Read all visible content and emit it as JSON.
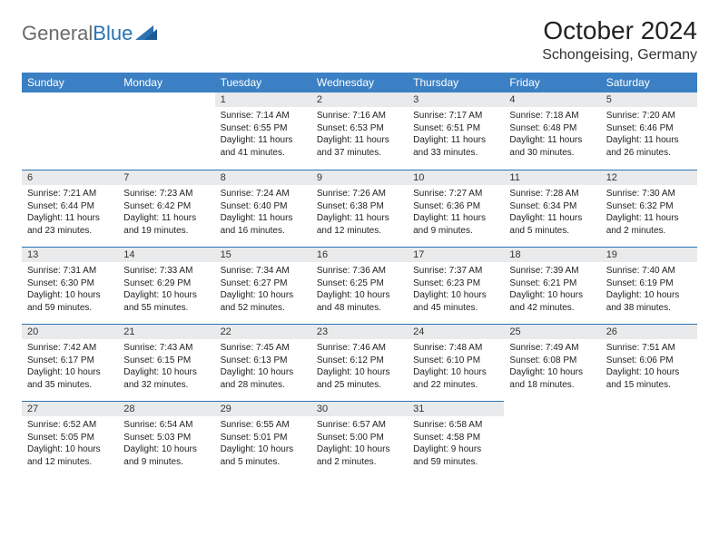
{
  "logo": {
    "general": "General",
    "blue": "Blue"
  },
  "title": "October 2024",
  "location": "Schongeising, Germany",
  "colors": {
    "header_bg": "#3b80c4",
    "header_text": "#ffffff",
    "daynum_bg": "#e9eaeb",
    "rule": "#2a72b5",
    "body_text": "#222222",
    "logo_gray": "#6a6a6a",
    "logo_blue": "#2a72b5",
    "page_bg": "#ffffff"
  },
  "weekdays": [
    "Sunday",
    "Monday",
    "Tuesday",
    "Wednesday",
    "Thursday",
    "Friday",
    "Saturday"
  ],
  "weeks": [
    [
      {
        "n": "",
        "sun": "",
        "set": "",
        "day": "",
        "empty": true
      },
      {
        "n": "",
        "sun": "",
        "set": "",
        "day": "",
        "empty": true
      },
      {
        "n": "1",
        "sun": "Sunrise: 7:14 AM",
        "set": "Sunset: 6:55 PM",
        "day": "Daylight: 11 hours and 41 minutes."
      },
      {
        "n": "2",
        "sun": "Sunrise: 7:16 AM",
        "set": "Sunset: 6:53 PM",
        "day": "Daylight: 11 hours and 37 minutes."
      },
      {
        "n": "3",
        "sun": "Sunrise: 7:17 AM",
        "set": "Sunset: 6:51 PM",
        "day": "Daylight: 11 hours and 33 minutes."
      },
      {
        "n": "4",
        "sun": "Sunrise: 7:18 AM",
        "set": "Sunset: 6:48 PM",
        "day": "Daylight: 11 hours and 30 minutes."
      },
      {
        "n": "5",
        "sun": "Sunrise: 7:20 AM",
        "set": "Sunset: 6:46 PM",
        "day": "Daylight: 11 hours and 26 minutes."
      }
    ],
    [
      {
        "n": "6",
        "sun": "Sunrise: 7:21 AM",
        "set": "Sunset: 6:44 PM",
        "day": "Daylight: 11 hours and 23 minutes."
      },
      {
        "n": "7",
        "sun": "Sunrise: 7:23 AM",
        "set": "Sunset: 6:42 PM",
        "day": "Daylight: 11 hours and 19 minutes."
      },
      {
        "n": "8",
        "sun": "Sunrise: 7:24 AM",
        "set": "Sunset: 6:40 PM",
        "day": "Daylight: 11 hours and 16 minutes."
      },
      {
        "n": "9",
        "sun": "Sunrise: 7:26 AM",
        "set": "Sunset: 6:38 PM",
        "day": "Daylight: 11 hours and 12 minutes."
      },
      {
        "n": "10",
        "sun": "Sunrise: 7:27 AM",
        "set": "Sunset: 6:36 PM",
        "day": "Daylight: 11 hours and 9 minutes."
      },
      {
        "n": "11",
        "sun": "Sunrise: 7:28 AM",
        "set": "Sunset: 6:34 PM",
        "day": "Daylight: 11 hours and 5 minutes."
      },
      {
        "n": "12",
        "sun": "Sunrise: 7:30 AM",
        "set": "Sunset: 6:32 PM",
        "day": "Daylight: 11 hours and 2 minutes."
      }
    ],
    [
      {
        "n": "13",
        "sun": "Sunrise: 7:31 AM",
        "set": "Sunset: 6:30 PM",
        "day": "Daylight: 10 hours and 59 minutes."
      },
      {
        "n": "14",
        "sun": "Sunrise: 7:33 AM",
        "set": "Sunset: 6:29 PM",
        "day": "Daylight: 10 hours and 55 minutes."
      },
      {
        "n": "15",
        "sun": "Sunrise: 7:34 AM",
        "set": "Sunset: 6:27 PM",
        "day": "Daylight: 10 hours and 52 minutes."
      },
      {
        "n": "16",
        "sun": "Sunrise: 7:36 AM",
        "set": "Sunset: 6:25 PM",
        "day": "Daylight: 10 hours and 48 minutes."
      },
      {
        "n": "17",
        "sun": "Sunrise: 7:37 AM",
        "set": "Sunset: 6:23 PM",
        "day": "Daylight: 10 hours and 45 minutes."
      },
      {
        "n": "18",
        "sun": "Sunrise: 7:39 AM",
        "set": "Sunset: 6:21 PM",
        "day": "Daylight: 10 hours and 42 minutes."
      },
      {
        "n": "19",
        "sun": "Sunrise: 7:40 AM",
        "set": "Sunset: 6:19 PM",
        "day": "Daylight: 10 hours and 38 minutes."
      }
    ],
    [
      {
        "n": "20",
        "sun": "Sunrise: 7:42 AM",
        "set": "Sunset: 6:17 PM",
        "day": "Daylight: 10 hours and 35 minutes."
      },
      {
        "n": "21",
        "sun": "Sunrise: 7:43 AM",
        "set": "Sunset: 6:15 PM",
        "day": "Daylight: 10 hours and 32 minutes."
      },
      {
        "n": "22",
        "sun": "Sunrise: 7:45 AM",
        "set": "Sunset: 6:13 PM",
        "day": "Daylight: 10 hours and 28 minutes."
      },
      {
        "n": "23",
        "sun": "Sunrise: 7:46 AM",
        "set": "Sunset: 6:12 PM",
        "day": "Daylight: 10 hours and 25 minutes."
      },
      {
        "n": "24",
        "sun": "Sunrise: 7:48 AM",
        "set": "Sunset: 6:10 PM",
        "day": "Daylight: 10 hours and 22 minutes."
      },
      {
        "n": "25",
        "sun": "Sunrise: 7:49 AM",
        "set": "Sunset: 6:08 PM",
        "day": "Daylight: 10 hours and 18 minutes."
      },
      {
        "n": "26",
        "sun": "Sunrise: 7:51 AM",
        "set": "Sunset: 6:06 PM",
        "day": "Daylight: 10 hours and 15 minutes."
      }
    ],
    [
      {
        "n": "27",
        "sun": "Sunrise: 6:52 AM",
        "set": "Sunset: 5:05 PM",
        "day": "Daylight: 10 hours and 12 minutes."
      },
      {
        "n": "28",
        "sun": "Sunrise: 6:54 AM",
        "set": "Sunset: 5:03 PM",
        "day": "Daylight: 10 hours and 9 minutes."
      },
      {
        "n": "29",
        "sun": "Sunrise: 6:55 AM",
        "set": "Sunset: 5:01 PM",
        "day": "Daylight: 10 hours and 5 minutes."
      },
      {
        "n": "30",
        "sun": "Sunrise: 6:57 AM",
        "set": "Sunset: 5:00 PM",
        "day": "Daylight: 10 hours and 2 minutes."
      },
      {
        "n": "31",
        "sun": "Sunrise: 6:58 AM",
        "set": "Sunset: 4:58 PM",
        "day": "Daylight: 9 hours and 59 minutes."
      },
      {
        "n": "",
        "sun": "",
        "set": "",
        "day": "",
        "empty": true
      },
      {
        "n": "",
        "sun": "",
        "set": "",
        "day": "",
        "empty": true
      }
    ]
  ]
}
